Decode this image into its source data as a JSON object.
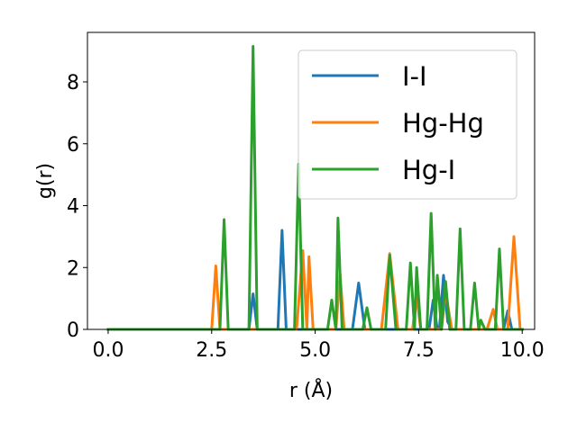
{
  "chart_data": {
    "type": "line",
    "title": "",
    "xlabel": "r (Å)",
    "ylabel": "g(r)",
    "xlim": [
      -0.5,
      10.3
    ],
    "ylim": [
      0,
      9.6
    ],
    "xticks": [
      0.0,
      2.5,
      5.0,
      7.5,
      10.0
    ],
    "xtick_labels": [
      "0.0",
      "2.5",
      "5.0",
      "7.5",
      "10.0"
    ],
    "yticks": [
      0,
      2,
      4,
      6,
      8
    ],
    "ytick_labels": [
      "0",
      "2",
      "4",
      "6",
      "8"
    ],
    "grid": false,
    "legend_position": "top-right",
    "series": [
      {
        "name": "I-I",
        "color": "#1f77b4",
        "points": [
          [
            0,
            0
          ],
          [
            3.4,
            0
          ],
          [
            3.5,
            1.15
          ],
          [
            3.6,
            0
          ],
          [
            4.1,
            0
          ],
          [
            4.2,
            3.2
          ],
          [
            4.3,
            0
          ],
          [
            5.9,
            0
          ],
          [
            6.05,
            1.5
          ],
          [
            6.2,
            0
          ],
          [
            7.75,
            0
          ],
          [
            7.85,
            0.95
          ],
          [
            7.95,
            0
          ],
          [
            8.0,
            0
          ],
          [
            8.1,
            1.75
          ],
          [
            8.2,
            0.25
          ],
          [
            8.3,
            0
          ],
          [
            9.55,
            0
          ],
          [
            9.65,
            0.6
          ],
          [
            9.75,
            0
          ],
          [
            10.0,
            0
          ]
        ]
      },
      {
        "name": "Hg-Hg",
        "color": "#ff7f0e",
        "points": [
          [
            0,
            0
          ],
          [
            2.5,
            0
          ],
          [
            2.6,
            2.05
          ],
          [
            2.7,
            0
          ],
          [
            4.55,
            0
          ],
          [
            4.7,
            2.55
          ],
          [
            4.8,
            0
          ],
          [
            4.85,
            2.35
          ],
          [
            4.95,
            0
          ],
          [
            5.5,
            0
          ],
          [
            5.6,
            1.8
          ],
          [
            5.7,
            0
          ],
          [
            6.6,
            0
          ],
          [
            6.8,
            2.45
          ],
          [
            7.0,
            0
          ],
          [
            7.35,
            0
          ],
          [
            7.45,
            1.05
          ],
          [
            7.55,
            0
          ],
          [
            8.05,
            0
          ],
          [
            8.15,
            1.2
          ],
          [
            8.3,
            0
          ],
          [
            9.15,
            0
          ],
          [
            9.3,
            0.65
          ],
          [
            9.4,
            0
          ],
          [
            9.65,
            0
          ],
          [
            9.8,
            3.0
          ],
          [
            9.95,
            0
          ],
          [
            10.0,
            0
          ]
        ]
      },
      {
        "name": "Hg-I",
        "color": "#2ca02c",
        "points": [
          [
            0,
            0
          ],
          [
            2.7,
            0
          ],
          [
            2.8,
            3.55
          ],
          [
            2.9,
            0
          ],
          [
            3.4,
            0
          ],
          [
            3.5,
            9.15
          ],
          [
            3.6,
            0
          ],
          [
            4.5,
            0
          ],
          [
            4.6,
            5.35
          ],
          [
            4.7,
            0
          ],
          [
            5.3,
            0
          ],
          [
            5.4,
            0.95
          ],
          [
            5.5,
            0
          ],
          [
            5.55,
            3.6
          ],
          [
            5.65,
            0
          ],
          [
            6.15,
            0
          ],
          [
            6.25,
            0.7
          ],
          [
            6.35,
            0
          ],
          [
            6.7,
            0
          ],
          [
            6.8,
            2.4
          ],
          [
            6.95,
            0
          ],
          [
            7.2,
            0
          ],
          [
            7.3,
            2.15
          ],
          [
            7.4,
            0
          ],
          [
            7.45,
            2.0
          ],
          [
            7.55,
            0
          ],
          [
            7.7,
            0
          ],
          [
            7.8,
            3.75
          ],
          [
            7.9,
            0
          ],
          [
            7.95,
            1.75
          ],
          [
            8.05,
            0
          ],
          [
            8.15,
            1.55
          ],
          [
            8.25,
            0
          ],
          [
            8.4,
            0
          ],
          [
            8.5,
            3.25
          ],
          [
            8.6,
            0
          ],
          [
            8.75,
            0
          ],
          [
            8.85,
            1.5
          ],
          [
            8.95,
            0
          ],
          [
            9.0,
            0.3
          ],
          [
            9.1,
            0
          ],
          [
            9.35,
            0
          ],
          [
            9.45,
            2.6
          ],
          [
            9.55,
            0
          ],
          [
            9.8,
            0
          ],
          [
            10.0,
            0
          ]
        ]
      }
    ]
  }
}
